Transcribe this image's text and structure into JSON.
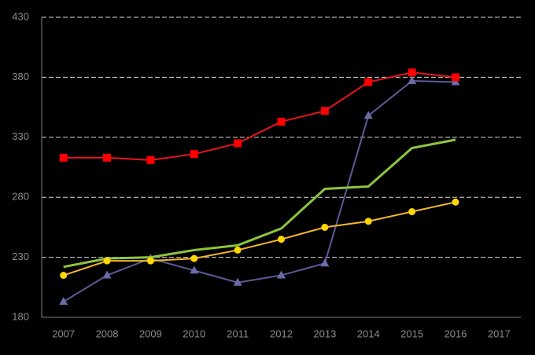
{
  "chart_data": {
    "type": "line",
    "categories": [
      "2007",
      "2008",
      "2009",
      "2010",
      "2011",
      "2012",
      "2013",
      "2014",
      "2015",
      "2016",
      "2017"
    ],
    "series": [
      {
        "color": "#5b5b96",
        "marker": "triangle",
        "values": [
          193,
          215,
          229,
          219,
          209,
          215,
          225,
          348,
          377,
          376,
          null
        ]
      },
      {
        "color": "#8cc63e",
        "marker": "none",
        "values": [
          222,
          229,
          230,
          236,
          240,
          254,
          287,
          289,
          321,
          328,
          null
        ]
      },
      {
        "color": "#f5b82e",
        "marker": "circle",
        "marker_color": "#ffd700",
        "values": [
          215,
          227,
          227,
          229,
          236,
          245,
          255,
          260,
          268,
          276,
          null
        ]
      },
      {
        "color": "#e8141e",
        "marker": "square",
        "marker_color": "#ff0000",
        "values": [
          313,
          313,
          311,
          316,
          325,
          343,
          352,
          376,
          384,
          380,
          null
        ]
      }
    ],
    "ylim": [
      180,
      430
    ],
    "yticks": [
      180,
      230,
      280,
      330,
      380,
      430
    ],
    "grid": true
  }
}
